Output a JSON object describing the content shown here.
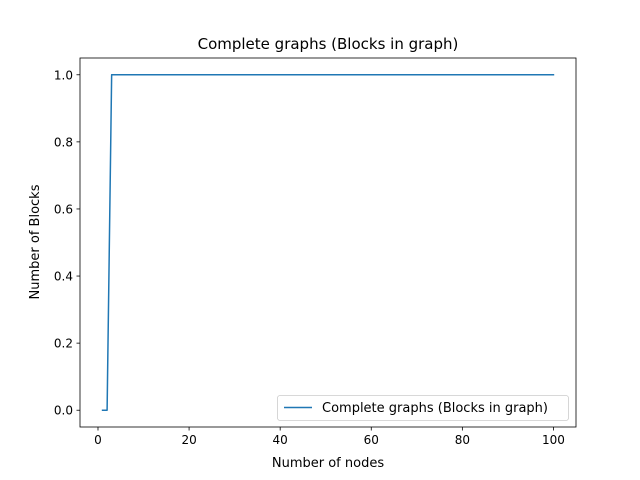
{
  "chart_data": {
    "type": "line",
    "title": "Complete graphs (Blocks in graph)",
    "xlabel": "Number of nodes",
    "ylabel": "Number of Blocks",
    "xlim": [
      -3.95,
      104.95
    ],
    "ylim": [
      -0.05,
      1.05
    ],
    "xticks": [
      0,
      20,
      40,
      60,
      80,
      100
    ],
    "yticks": [
      0.0,
      0.2,
      0.4,
      0.6,
      0.8,
      1.0
    ],
    "xtick_labels": [
      "0",
      "20",
      "40",
      "60",
      "80",
      "100"
    ],
    "ytick_labels": [
      "0.0",
      "0.2",
      "0.4",
      "0.6",
      "0.8",
      "1.0"
    ],
    "grid": false,
    "legend_position": "lower right",
    "series": [
      {
        "name": "Complete graphs (Blocks in graph)",
        "color": "#1f77b4",
        "x": [
          1,
          2,
          3,
          100
        ],
        "y": [
          0,
          0,
          1,
          1
        ]
      }
    ]
  }
}
